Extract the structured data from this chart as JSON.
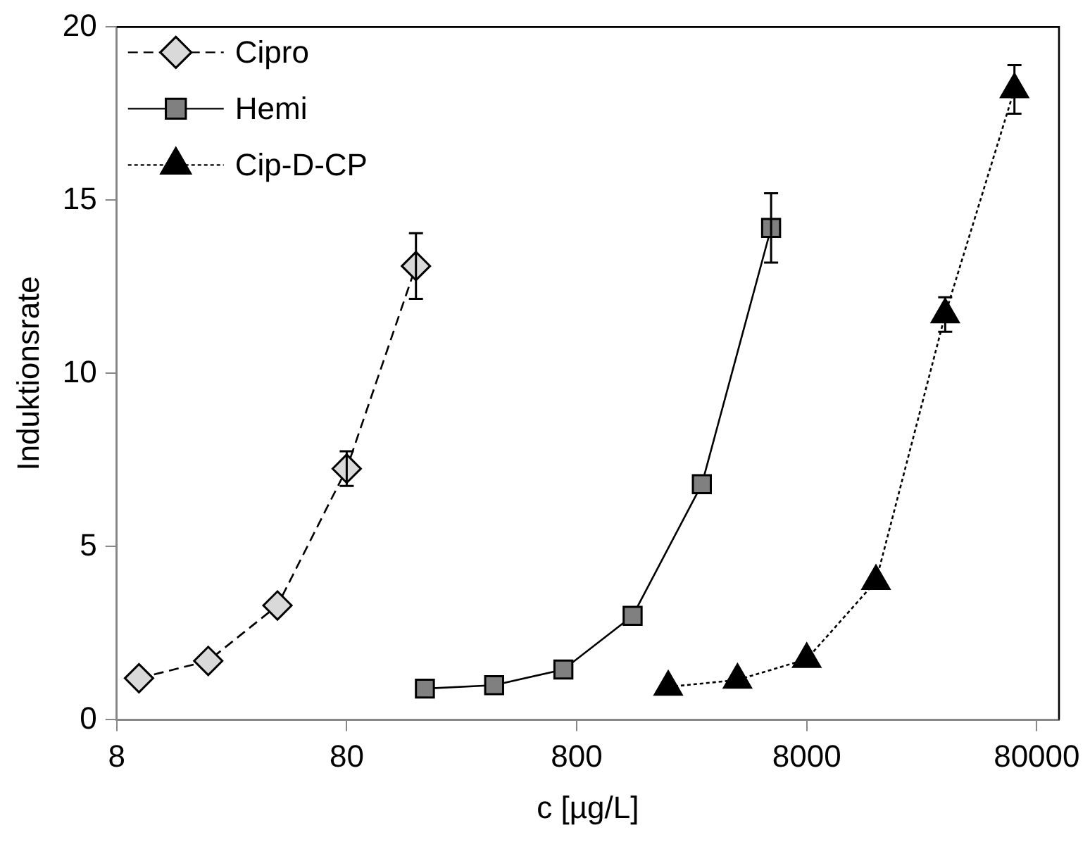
{
  "chart_data": {
    "type": "line",
    "xlabel": "c [µg/L]",
    "ylabel": "Induktionsrate",
    "log": "x",
    "xlim": [
      8,
      100000
    ],
    "xticks": [
      8,
      80,
      800,
      8000,
      80000
    ],
    "ylim": [
      0,
      20
    ],
    "yticks": [
      0,
      5,
      10,
      15,
      20
    ],
    "grid": false,
    "legend": "top left",
    "series": [
      {
        "name": "Cipro",
        "color": "#d9d9d9",
        "marker": "diamond",
        "line_style": "dashed",
        "x": [
          10,
          20,
          40,
          80,
          160
        ],
        "values": [
          1.2,
          1.7,
          3.3,
          7.25,
          13.1
        ],
        "errors": [
          null,
          null,
          null,
          0.5,
          0.95
        ]
      },
      {
        "name": "Hemi",
        "color": "#808080",
        "marker": "square",
        "line_style": "solid",
        "x": [
          175,
          350,
          700,
          1400,
          2800,
          5600
        ],
        "values": [
          0.9,
          1.0,
          1.45,
          3.0,
          6.8,
          14.2
        ],
        "errors": [
          null,
          null,
          null,
          null,
          null,
          1.0
        ]
      },
      {
        "name": "Cip-D-CP",
        "color": "#000000",
        "marker": "triangle",
        "line_style": "dotted",
        "x": [
          2000,
          4000,
          8000,
          16000,
          32000,
          64000
        ],
        "values": [
          0.95,
          1.15,
          1.75,
          4.0,
          11.7,
          18.2
        ],
        "errors": [
          null,
          null,
          null,
          null,
          0.5,
          0.7
        ]
      }
    ]
  }
}
